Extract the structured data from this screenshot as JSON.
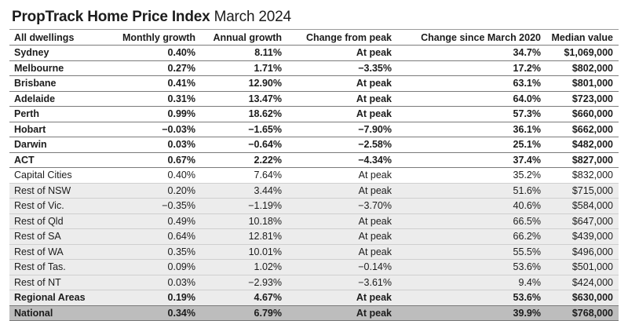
{
  "title": {
    "bold": "PropTrack Home Price Index",
    "sub": "March 2024"
  },
  "chart_data": {
    "type": "table",
    "title": "PropTrack Home Price Index March 2024",
    "columns": [
      "All dwellings",
      "Monthly growth",
      "Annual growth",
      "Change from peak",
      "Change since March 2020",
      "Median value"
    ],
    "rows": [
      {
        "group": "capital",
        "cells": [
          "Sydney",
          "0.40%",
          "8.11%",
          "At peak",
          "34.7%",
          "$1,069,000"
        ]
      },
      {
        "group": "capital",
        "cells": [
          "Melbourne",
          "0.27%",
          "1.71%",
          "−3.35%",
          "17.2%",
          "$802,000"
        ]
      },
      {
        "group": "capital",
        "cells": [
          "Brisbane",
          "0.41%",
          "12.90%",
          "At peak",
          "63.1%",
          "$801,000"
        ]
      },
      {
        "group": "capital",
        "cells": [
          "Adelaide",
          "0.31%",
          "13.47%",
          "At peak",
          "64.0%",
          "$723,000"
        ]
      },
      {
        "group": "capital",
        "cells": [
          "Perth",
          "0.99%",
          "18.62%",
          "At peak",
          "57.3%",
          "$660,000"
        ]
      },
      {
        "group": "capital",
        "cells": [
          "Hobart",
          "−0.03%",
          "−1.65%",
          "−7.90%",
          "36.1%",
          "$662,000"
        ]
      },
      {
        "group": "capital",
        "cells": [
          "Darwin",
          "0.03%",
          "−0.64%",
          "−2.58%",
          "25.1%",
          "$482,000"
        ]
      },
      {
        "group": "capital",
        "cells": [
          "ACT",
          "0.67%",
          "2.22%",
          "−4.34%",
          "37.4%",
          "$827,000"
        ]
      },
      {
        "group": "capital-total",
        "cells": [
          "Capital Cities",
          "0.40%",
          "7.64%",
          "At peak",
          "35.2%",
          "$832,000"
        ]
      },
      {
        "group": "regional",
        "cells": [
          "Rest of NSW",
          "0.20%",
          "3.44%",
          "At peak",
          "51.6%",
          "$715,000"
        ]
      },
      {
        "group": "regional",
        "cells": [
          "Rest of Vic.",
          "−0.35%",
          "−1.19%",
          "−3.70%",
          "40.6%",
          "$584,000"
        ]
      },
      {
        "group": "regional",
        "cells": [
          "Rest of Qld",
          "0.49%",
          "10.18%",
          "At peak",
          "66.5%",
          "$647,000"
        ]
      },
      {
        "group": "regional",
        "cells": [
          "Rest of SA",
          "0.64%",
          "12.81%",
          "At peak",
          "66.2%",
          "$439,000"
        ]
      },
      {
        "group": "regional",
        "cells": [
          "Rest of WA",
          "0.35%",
          "10.01%",
          "At peak",
          "55.5%",
          "$496,000"
        ]
      },
      {
        "group": "regional",
        "cells": [
          "Rest of Tas.",
          "0.09%",
          "1.02%",
          "−0.14%",
          "53.6%",
          "$501,000"
        ]
      },
      {
        "group": "regional",
        "cells": [
          "Rest of NT",
          "0.03%",
          "−2.93%",
          "−3.61%",
          "9.4%",
          "$424,000"
        ]
      },
      {
        "group": "regional-total",
        "cells": [
          "Regional Areas",
          "0.19%",
          "4.67%",
          "At peak",
          "53.6%",
          "$630,000"
        ]
      },
      {
        "group": "national",
        "cells": [
          "National",
          "0.34%",
          "6.79%",
          "At peak",
          "39.9%",
          "$768,000"
        ]
      }
    ]
  },
  "colors": {
    "regional_bg": "#ececec",
    "national_bg": "#bdbdbd",
    "rule": "#7a7a7a",
    "text": "#1c1c1c"
  }
}
